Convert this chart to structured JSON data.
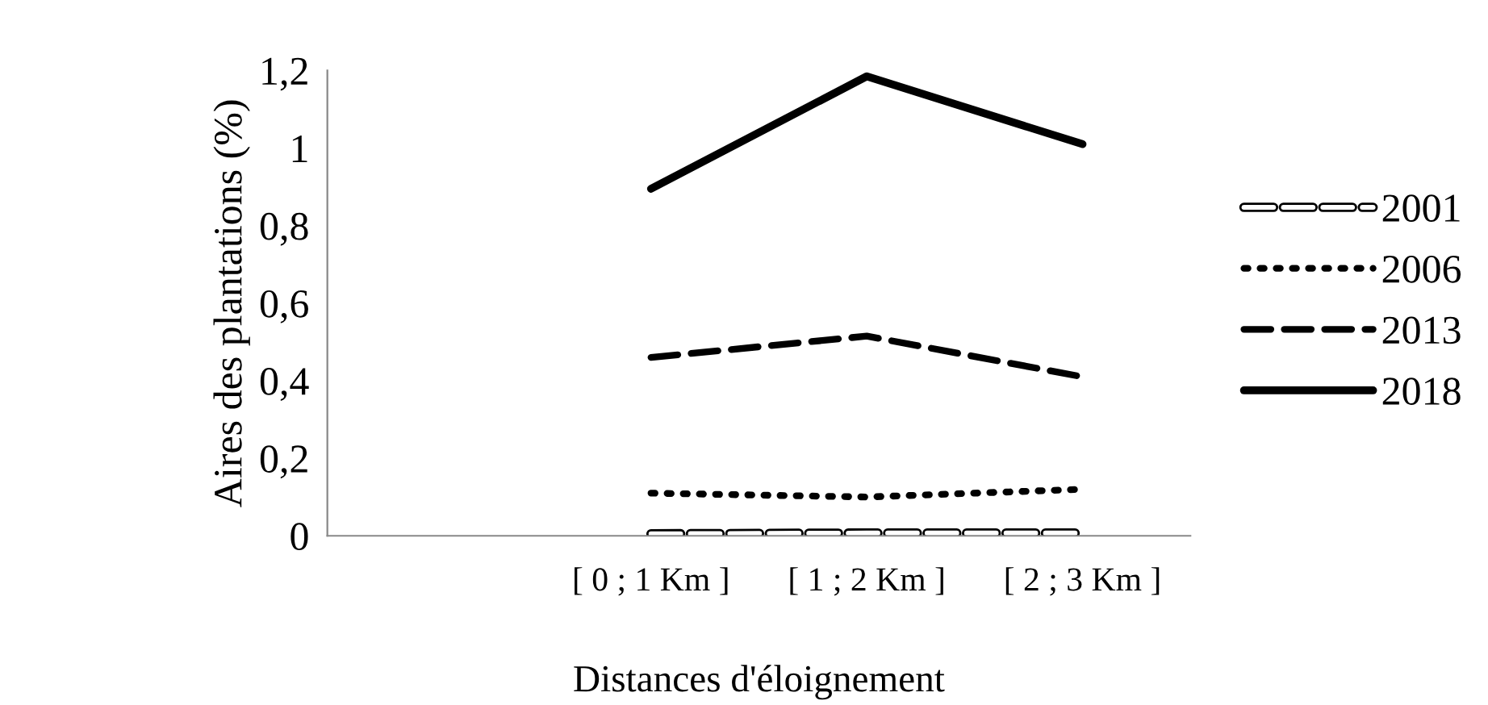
{
  "chart_data": {
    "type": "line",
    "xlabel": "Distances d'éloignement",
    "ylabel": "Aires des plantations (%)",
    "categories": [
      "[ 0 ; 1 Km ]",
      "[ 1 ; 2 Km ]",
      "[ 2 ; 3 Km ]"
    ],
    "series": [
      {
        "name": "2001",
        "color": "#000000",
        "line_style": "dashed",
        "values": [
          0.005,
          0.007,
          0.007
        ]
      },
      {
        "name": "2006",
        "color": "#000000",
        "line_style": "dotted",
        "values": [
          0.11,
          0.1,
          0.12
        ]
      },
      {
        "name": "2013",
        "color": "#000000",
        "line_style": "dashed",
        "values": [
          0.46,
          0.515,
          0.41
        ]
      },
      {
        "name": "2018",
        "color": "#000000",
        "line_style": "solid",
        "values": [
          0.895,
          1.185,
          1.01
        ]
      }
    ],
    "ylim": [
      0,
      1.2
    ],
    "yticks": [
      0,
      {
        "value": 0.2,
        "label": "0,2"
      },
      {
        "value": 0.4,
        "label": "0,4"
      },
      {
        "value": 0.6,
        "label": "0,6"
      },
      {
        "value": 0.8,
        "label": "0,8"
      },
      1,
      {
        "value": 1.2,
        "label": "1,2"
      }
    ],
    "grid": false,
    "legend": "right",
    "marker": "none"
  }
}
